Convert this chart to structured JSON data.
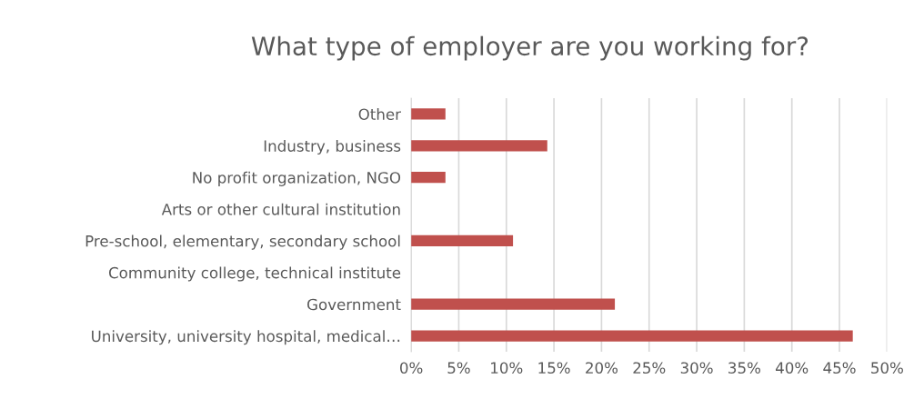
{
  "chart_data": {
    "type": "bar",
    "orientation": "horizontal",
    "title": "What type of employer are you working for?",
    "categories": [
      "Other",
      "Industry, business",
      "No profit organization, NGO",
      "Arts or other cultural institution",
      "Pre-school, elementary, secondary school",
      "Community college, technical institute",
      "Government",
      "University, university hospital, medical…"
    ],
    "values": [
      3.6,
      14.3,
      3.6,
      0,
      10.7,
      0,
      21.4,
      46.4
    ],
    "color": "#c0504d",
    "xlim": [
      0,
      50
    ],
    "xticks": [
      {
        "value": 0,
        "label": "0%"
      },
      {
        "value": 5,
        "label": "5%"
      },
      {
        "value": 10,
        "label": "10%"
      },
      {
        "value": 15,
        "label": "15%"
      },
      {
        "value": 20,
        "label": "20%"
      },
      {
        "value": 25,
        "label": "25%"
      },
      {
        "value": 30,
        "label": "30%"
      },
      {
        "value": 35,
        "label": "35%"
      },
      {
        "value": 40,
        "label": "40%"
      },
      {
        "value": 45,
        "label": "45%"
      },
      {
        "value": 50,
        "label": "50%"
      }
    ],
    "grid": "x"
  }
}
